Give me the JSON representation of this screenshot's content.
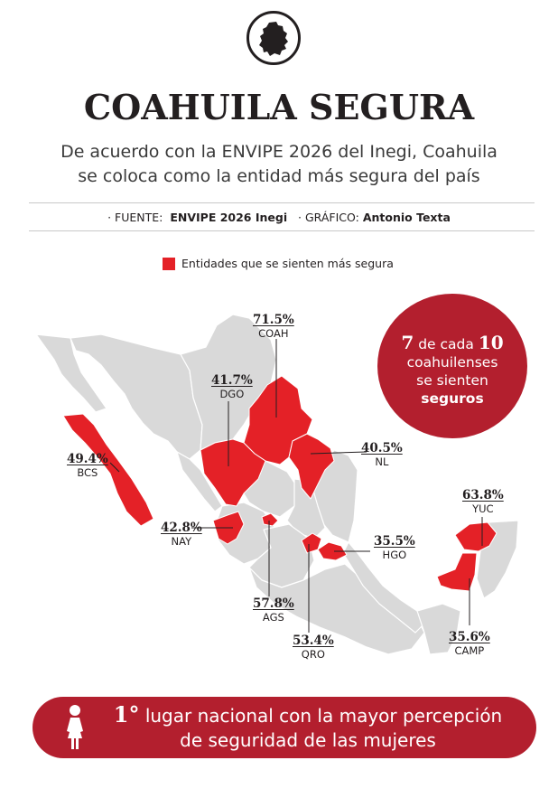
{
  "header": {
    "title": "COAHUILA SEGURA",
    "subtitle_line1": "De acuerdo con la ENVIPE 2026 del Inegi, Coahuila",
    "subtitle_line2": "se coloca como la entidad más segura del país"
  },
  "source": {
    "source_label": "· FUENTE:",
    "source_value": "ENVIPE 2026 Inegi",
    "graphic_label": "· GRÁFICO:",
    "graphic_value": "Antonio Texta"
  },
  "legend": {
    "label": "Entidades que se sienten más segura",
    "color": "#e42127"
  },
  "colors": {
    "highlight": "#e42127",
    "base_map": "#d9d9d9",
    "accent_dark": "#b31f2e"
  },
  "states": [
    {
      "abbr": "COAH",
      "value": "71.5%"
    },
    {
      "abbr": "DGO",
      "value": "41.7%"
    },
    {
      "abbr": "NL",
      "value": "40.5%"
    },
    {
      "abbr": "BCS",
      "value": "49.4%"
    },
    {
      "abbr": "NAY",
      "value": "42.8%"
    },
    {
      "abbr": "AGS",
      "value": "57.8%"
    },
    {
      "abbr": "QRO",
      "value": "53.4%"
    },
    {
      "abbr": "HGO",
      "value": "35.5%"
    },
    {
      "abbr": "YUC",
      "value": "63.8%"
    },
    {
      "abbr": "CAMP",
      "value": "35.6%"
    }
  ],
  "bubble": {
    "num1": "7",
    "mid": "de cada",
    "num2": "10",
    "line2": "coahuilenses",
    "line3": "se sienten",
    "line4": "seguros"
  },
  "banner": {
    "rank": "1°",
    "line1": "lugar nacional con la mayor percepción",
    "line2": "de seguridad de las mujeres"
  }
}
